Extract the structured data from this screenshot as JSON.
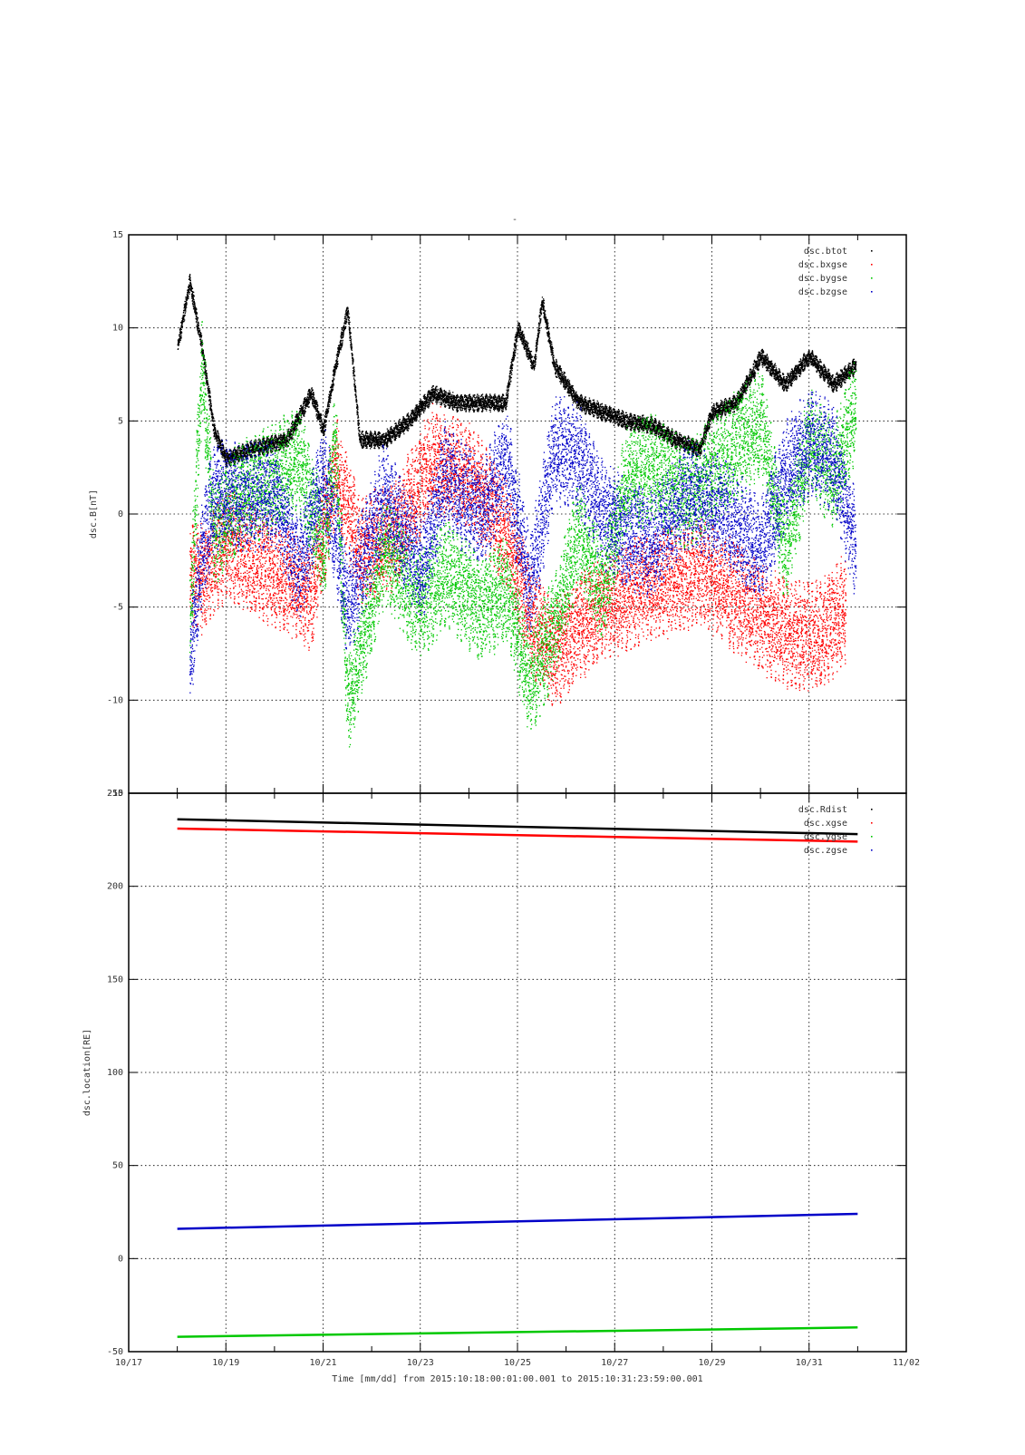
{
  "page": {
    "title_mark": "-",
    "xlabel": "Time [mm/dd]  from 2015:10:18:00:01:00.001  to  2015:10:31:23:59:00.001"
  },
  "chart_data": [
    {
      "type": "scatter",
      "title": "",
      "ylabel": "dsc.B[nT]",
      "xlabel": "",
      "ylim": [
        -15,
        15
      ],
      "yticks": [
        -15,
        -10,
        -5,
        0,
        5,
        10,
        15
      ],
      "grid": true,
      "legend_position": "top-right",
      "x_range_days": [
        "10/18 00:01",
        "10/31 23:59"
      ],
      "series": [
        {
          "name": "dsc.btot",
          "color": "#000000",
          "x": [
            "10/18 00:00",
            "10/18 06:00",
            "10/18 12:00",
            "10/18 18:00",
            "10/19 00:00",
            "10/19 12:00",
            "10/19 18:00",
            "10/20 06:00",
            "10/20 18:00",
            "10/21 00:00",
            "10/21 06:00",
            "10/21 12:00",
            "10/21 18:00",
            "10/22 06:00",
            "10/22 18:00",
            "10/23 06:00",
            "10/23 18:00",
            "10/24 06:00",
            "10/24 18:00",
            "10/25 00:00",
            "10/25 08:00",
            "10/25 12:00",
            "10/25 18:00",
            "10/26 06:00",
            "10/26 18:00",
            "10/27 06:00",
            "10/27 18:00",
            "10/28 06:00",
            "10/28 18:00",
            "10/29 00:00",
            "10/29 12:00",
            "10/30 00:00",
            "10/30 12:00",
            "10/31 00:00",
            "10/31 12:00",
            "10/31 23:00"
          ],
          "y": [
            9.0,
            12.5,
            9.0,
            4.5,
            3.0,
            3.5,
            null,
            4.0,
            6.5,
            4.5,
            8.0,
            11.0,
            4.0,
            4.0,
            5.0,
            6.5,
            6.0,
            6.0,
            6.0,
            10.0,
            8.0,
            11.5,
            8.0,
            6.0,
            5.5,
            5.0,
            4.8,
            4.0,
            3.5,
            5.5,
            6.0,
            8.5,
            7.0,
            8.5,
            7.0,
            8.0
          ]
        },
        {
          "name": "dsc.bxgse",
          "color": "#ff0000",
          "x": [
            "10/18 06:00",
            "10/18 12:00",
            "10/18 18:00",
            "10/19 00:00",
            "10/19 12:00",
            "10/20 06:00",
            "10/20 18:00",
            "10/21 06:00",
            "10/21 18:00",
            "10/22 12:00",
            "10/23 06:00",
            "10/24 00:00",
            "10/24 18:00",
            "10/25 06:00",
            "10/25 18:00",
            "10/26 06:00",
            "10/26 18:00",
            "10/27 12:00",
            "10/28 06:00",
            "10/28 18:00",
            "10/29 12:00",
            "10/30 06:00",
            "10/30 18:00",
            "10/31 06:00",
            "10/31 18:00"
          ],
          "y": [
            -3.0,
            -3.5,
            -2.5,
            -1.5,
            -2.5,
            -3.5,
            -4.5,
            2.5,
            -2.0,
            -1.0,
            3.0,
            2.0,
            -1.0,
            -5.5,
            -7.5,
            -6.0,
            -5.0,
            -4.0,
            -3.5,
            -3.0,
            -4.5,
            -6.0,
            -6.5,
            -6.5,
            -5.0
          ]
        },
        {
          "name": "dsc.bygse",
          "color": "#00c800",
          "x": [
            "10/18 06:00",
            "10/18 12:00",
            "10/18 18:00",
            "10/19 06:00",
            "10/20 00:00",
            "10/20 12:00",
            "10/21 00:00",
            "10/21 06:00",
            "10/21 12:00",
            "10/22 06:00",
            "10/23 00:00",
            "10/23 12:00",
            "10/24 06:00",
            "10/24 18:00",
            "10/25 06:00",
            "10/25 18:00",
            "10/26 06:00",
            "10/26 18:00",
            "10/27 06:00",
            "10/27 18:00",
            "10/28 12:00",
            "10/29 06:00",
            "10/30 00:00",
            "10/30 12:00",
            "10/31 00:00",
            "10/31 12:00",
            "10/31 23:00"
          ],
          "y": [
            -6.0,
            8.0,
            -1.0,
            1.0,
            2.0,
            3.0,
            -2.0,
            4.0,
            -10.0,
            -2.0,
            -5.0,
            -3.0,
            -5.0,
            -4.0,
            -9.0,
            -6.0,
            -1.0,
            -4.0,
            2.0,
            2.5,
            1.0,
            3.0,
            5.0,
            -2.0,
            4.0,
            2.0,
            6.0
          ]
        },
        {
          "name": "dsc.bzgse",
          "color": "#0000c8",
          "x": [
            "10/18 06:00",
            "10/18 12:00",
            "10/18 18:00",
            "10/19 06:00",
            "10/20 00:00",
            "10/20 12:00",
            "10/21 00:00",
            "10/21 06:00",
            "10/21 12:00",
            "10/22 06:00",
            "10/23 00:00",
            "10/23 12:00",
            "10/24 06:00",
            "10/24 18:00",
            "10/25 06:00",
            "10/25 18:00",
            "10/26 06:00",
            "10/26 18:00",
            "10/27 06:00",
            "10/27 18:00",
            "10/28 12:00",
            "10/29 06:00",
            "10/30 00:00",
            "10/30 12:00",
            "10/31 00:00",
            "10/31 12:00",
            "10/31 23:00"
          ],
          "y": [
            -8.0,
            -2.0,
            1.0,
            1.0,
            1.0,
            -3.0,
            2.0,
            -1.0,
            -5.0,
            1.0,
            -3.0,
            2.0,
            0.0,
            3.0,
            -4.0,
            3.5,
            3.0,
            0.0,
            -1.0,
            -1.5,
            1.0,
            0.0,
            -2.0,
            2.0,
            4.0,
            3.0,
            -2.0
          ]
        }
      ]
    },
    {
      "type": "line",
      "title": "",
      "ylabel": "dsc.location[RE]",
      "xlabel": "",
      "ylim": [
        -50,
        250
      ],
      "yticks": [
        -50,
        0,
        50,
        100,
        150,
        200,
        250
      ],
      "xticks": [
        "10/17",
        "10/19",
        "10/21",
        "10/23",
        "10/25",
        "10/27",
        "10/29",
        "10/31",
        "11/02"
      ],
      "grid": true,
      "legend_position": "top-right",
      "series": [
        {
          "name": "dsc.Rdist",
          "color": "#000000",
          "x": [
            "10/18 00:01",
            "10/31 23:59"
          ],
          "y": [
            236,
            228
          ]
        },
        {
          "name": "dsc.xgse",
          "color": "#ff0000",
          "x": [
            "10/18 00:01",
            "10/31 23:59"
          ],
          "y": [
            231,
            224
          ]
        },
        {
          "name": "dsc.ygse",
          "color": "#00c800",
          "x": [
            "10/18 00:01",
            "10/31 23:59"
          ],
          "y": [
            -42,
            -37
          ]
        },
        {
          "name": "dsc.zgse",
          "color": "#0000c8",
          "x": [
            "10/18 00:01",
            "10/31 23:59"
          ],
          "y": [
            16,
            24
          ]
        }
      ]
    }
  ]
}
